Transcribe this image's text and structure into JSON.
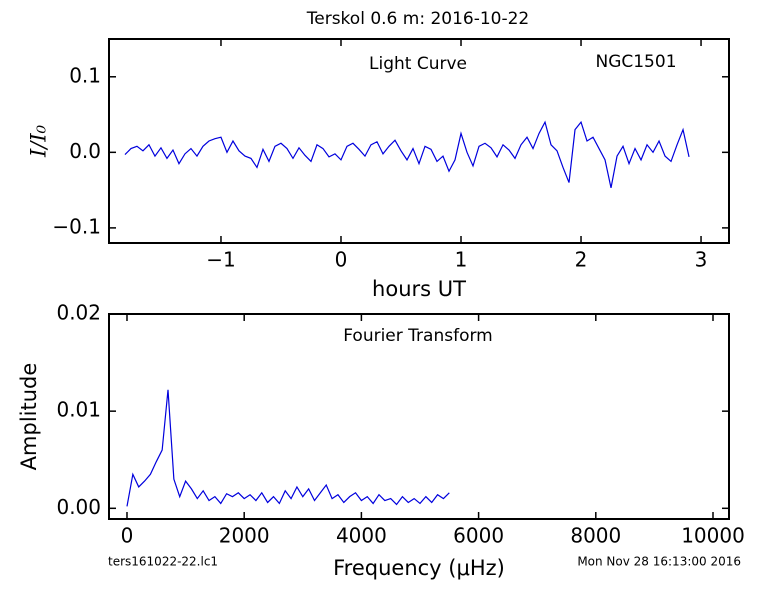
{
  "title": "Terskol 0.6 m:  2016-10-22",
  "footer_left": "ters161022-22.lc1",
  "footer_right": "Mon Nov 28 16:13:00 2016",
  "chart_data": [
    {
      "type": "line",
      "annotations": [
        "Light Curve",
        "NGC1501"
      ],
      "xlabel": "hours UT",
      "ylabel": "I/I₀",
      "color": "#0000dd",
      "xlim": [
        -1.933,
        3.233
      ],
      "ylim": [
        -0.12,
        0.15
      ],
      "xticks": [
        {
          "value": -1,
          "label": "−1"
        },
        0,
        1,
        2,
        3
      ],
      "yticks": [
        {
          "value": 0.1,
          "label": "0.1"
        },
        {
          "value": 0,
          "label": "0.0"
        },
        {
          "value": -0.1,
          "label": "−0.1"
        }
      ],
      "x": [
        -1.8,
        -1.75,
        -1.7,
        -1.65,
        -1.6,
        -1.55,
        -1.5,
        -1.45,
        -1.4,
        -1.35,
        -1.3,
        -1.25,
        -1.2,
        -1.15,
        -1.1,
        -1.05,
        -1.0,
        -0.95,
        -0.9,
        -0.85,
        -0.8,
        -0.75,
        -0.7,
        -0.65,
        -0.6,
        -0.55,
        -0.5,
        -0.45,
        -0.4,
        -0.35,
        -0.3,
        -0.25,
        -0.2,
        -0.15,
        -0.1,
        -0.05,
        0.0,
        0.05,
        0.1,
        0.15,
        0.2,
        0.25,
        0.3,
        0.35,
        0.4,
        0.45,
        0.5,
        0.55,
        0.6,
        0.65,
        0.7,
        0.75,
        0.8,
        0.85,
        0.9,
        0.95,
        1.0,
        1.05,
        1.1,
        1.15,
        1.2,
        1.25,
        1.3,
        1.35,
        1.4,
        1.45,
        1.5,
        1.55,
        1.6,
        1.65,
        1.7,
        1.75,
        1.8,
        1.85,
        1.9,
        1.95,
        2.0,
        2.05,
        2.1,
        2.15,
        2.2,
        2.25,
        2.3,
        2.35,
        2.4,
        2.45,
        2.5,
        2.55,
        2.6,
        2.65,
        2.7,
        2.75,
        2.8,
        2.85,
        2.9
      ],
      "values": [
        -0.003,
        0.005,
        0.008,
        0.002,
        0.01,
        -0.005,
        0.006,
        -0.008,
        0.003,
        -0.015,
        -0.002,
        0.005,
        -0.005,
        0.008,
        0.015,
        0.018,
        0.02,
        0.0,
        0.015,
        0.002,
        -0.005,
        -0.008,
        -0.02,
        0.004,
        -0.012,
        0.008,
        0.012,
        0.005,
        -0.008,
        0.006,
        -0.004,
        -0.012,
        0.01,
        0.005,
        -0.006,
        -0.002,
        -0.01,
        0.008,
        0.012,
        0.004,
        -0.005,
        0.01,
        0.014,
        -0.002,
        0.008,
        0.016,
        0.002,
        -0.01,
        0.005,
        -0.015,
        0.008,
        0.004,
        -0.012,
        -0.005,
        -0.025,
        -0.01,
        0.025,
        0.0,
        -0.018,
        0.008,
        0.012,
        0.006,
        -0.006,
        0.01,
        0.003,
        -0.008,
        0.01,
        0.02,
        0.005,
        0.025,
        0.04,
        0.01,
        0.002,
        -0.02,
        -0.04,
        0.03,
        0.04,
        0.015,
        0.02,
        0.005,
        -0.01,
        -0.047,
        -0.005,
        0.008,
        -0.015,
        0.005,
        -0.01,
        0.01,
        0.0,
        0.015,
        -0.005,
        -0.012,
        0.01,
        0.03,
        -0.006
      ]
    },
    {
      "type": "line",
      "annotations": [
        "Fourier Transform"
      ],
      "xlabel": "Frequency (μHz)",
      "ylabel": "Amplitude",
      "color": "#0000dd",
      "xlim": [
        -307,
        10273
      ],
      "ylim": [
        -0.0011,
        0.02
      ],
      "xticks": [
        0,
        2000,
        4000,
        6000,
        8000,
        10000
      ],
      "yticks": [
        {
          "value": 0.02,
          "label": "0.02"
        },
        {
          "value": 0.01,
          "label": "0.01"
        },
        {
          "value": 0,
          "label": "0.00"
        }
      ],
      "x": [
        0,
        100,
        200,
        300,
        400,
        500,
        600,
        700,
        800,
        900,
        1000,
        1100,
        1200,
        1300,
        1400,
        1500,
        1600,
        1700,
        1800,
        1900,
        2000,
        2100,
        2200,
        2300,
        2400,
        2500,
        2600,
        2700,
        2800,
        2900,
        3000,
        3100,
        3200,
        3300,
        3400,
        3500,
        3600,
        3700,
        3800,
        3900,
        4000,
        4100,
        4200,
        4300,
        4400,
        4500,
        4600,
        4700,
        4800,
        4900,
        5000,
        5100,
        5200,
        5300,
        5400,
        5500
      ],
      "values": [
        0.0002,
        0.0035,
        0.0022,
        0.0028,
        0.0035,
        0.0048,
        0.006,
        0.0122,
        0.003,
        0.0012,
        0.0028,
        0.002,
        0.001,
        0.0018,
        0.0008,
        0.0012,
        0.0005,
        0.0015,
        0.0012,
        0.0016,
        0.001,
        0.0014,
        0.0008,
        0.0016,
        0.0006,
        0.0012,
        0.0005,
        0.0018,
        0.001,
        0.0022,
        0.0012,
        0.002,
        0.0008,
        0.0016,
        0.0024,
        0.001,
        0.0014,
        0.0006,
        0.0012,
        0.0016,
        0.0008,
        0.0012,
        0.0005,
        0.0014,
        0.0008,
        0.001,
        0.0004,
        0.0012,
        0.0006,
        0.001,
        0.0005,
        0.0012,
        0.0006,
        0.0014,
        0.001,
        0.0016
      ]
    }
  ]
}
